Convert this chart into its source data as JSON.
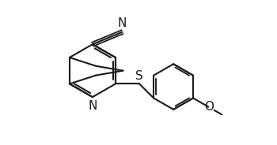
{
  "bg_color": "#ffffff",
  "line_color": "#1a1a1a",
  "line_width": 1.5,
  "font_size": 10,
  "figsize": [
    3.5,
    1.84
  ],
  "dpi": 100,
  "xlim": [
    0.0,
    7.5
  ],
  "ylim": [
    0.5,
    4.2
  ]
}
